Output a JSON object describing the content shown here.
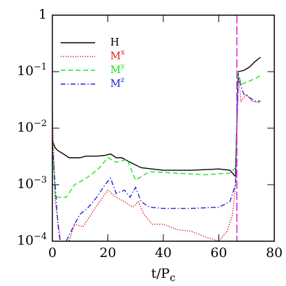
{
  "chart_data": {
    "type": "line",
    "x_label": "t/Pc",
    "xlim": [
      0,
      80
    ],
    "xticks": [
      0,
      20,
      40,
      60,
      80
    ],
    "ylim": [
      0.0001,
      1
    ],
    "log_y": true,
    "yticks": [
      {
        "value": 0.0001,
        "label": "10−4"
      },
      {
        "value": 0.001,
        "label": "10−3"
      },
      {
        "value": 0.01,
        "label": "10−2"
      },
      {
        "value": 0.1,
        "label": "10−1"
      },
      1
    ],
    "legend": "upper left",
    "vline": {
      "x": 66.5,
      "color": "#e020e0"
    },
    "series": [
      {
        "name": "H",
        "color": "#000000",
        "dash": "solid",
        "x": [
          0,
          1,
          2,
          4,
          6,
          10,
          12,
          16,
          19,
          21,
          23,
          25,
          28,
          32,
          40,
          50,
          60,
          64,
          66,
          67,
          69,
          71,
          73,
          75
        ],
        "values": [
          0.006,
          0.0045,
          0.004,
          0.0035,
          0.003,
          0.003,
          0.0032,
          0.0032,
          0.0033,
          0.0035,
          0.003,
          0.003,
          0.0025,
          0.002,
          0.0018,
          0.0018,
          0.0019,
          0.0018,
          0.0014,
          0.1,
          0.105,
          0.12,
          0.15,
          0.18
        ]
      },
      {
        "name": "Mx",
        "color": "#e02020",
        "dash": "dotted",
        "x": [
          0,
          1,
          3,
          4,
          6,
          8,
          11,
          14,
          17,
          20,
          23,
          26,
          29,
          31,
          33,
          36,
          40,
          45,
          50,
          55,
          60,
          63,
          65,
          66,
          67,
          68,
          70,
          72,
          75
        ],
        "values": [
          0.02,
          0.0005,
          0.0001,
          8e-05,
          0.0001,
          0.0002,
          0.00018,
          0.0003,
          0.0005,
          0.0008,
          0.0006,
          0.0005,
          0.0004,
          0.0005,
          0.0003,
          0.0002,
          0.0002,
          0.00016,
          0.00015,
          0.00012,
          0.0001,
          0.00015,
          0.0003,
          0.001,
          0.09,
          0.03,
          0.04,
          0.03,
          0.028
        ]
      },
      {
        "name": "My",
        "color": "#20e020",
        "dash": "dashed",
        "x": [
          0,
          1,
          5,
          8,
          11,
          14,
          17,
          20,
          23,
          27,
          30,
          35,
          45,
          55,
          64,
          66,
          67,
          68,
          70,
          73,
          75
        ],
        "values": [
          0.005,
          0.0006,
          0.0006,
          0.001,
          0.0012,
          0.0015,
          0.002,
          0.003,
          0.0025,
          0.0028,
          0.0012,
          0.0017,
          0.0016,
          0.0015,
          0.0016,
          0.002,
          0.1,
          0.06,
          0.065,
          0.075,
          0.085
        ]
      },
      {
        "name": "Mz",
        "color": "#2020e0",
        "dash": "dashdot",
        "x": [
          0,
          2,
          3,
          5,
          8,
          10,
          13,
          16,
          19,
          21,
          23,
          26,
          28,
          30,
          32,
          35,
          40,
          50,
          60,
          64,
          66,
          67,
          69,
          71,
          73,
          75
        ],
        "values": [
          0.005,
          0.0002,
          8e-05,
          0.0001,
          0.0002,
          0.0003,
          0.0004,
          0.0006,
          0.001,
          0.0013,
          0.0007,
          0.0008,
          0.0006,
          0.0009,
          0.0005,
          0.0004,
          0.00038,
          0.00038,
          0.0004,
          0.0005,
          0.001,
          0.08,
          0.04,
          0.035,
          0.03,
          0.03
        ]
      }
    ]
  }
}
